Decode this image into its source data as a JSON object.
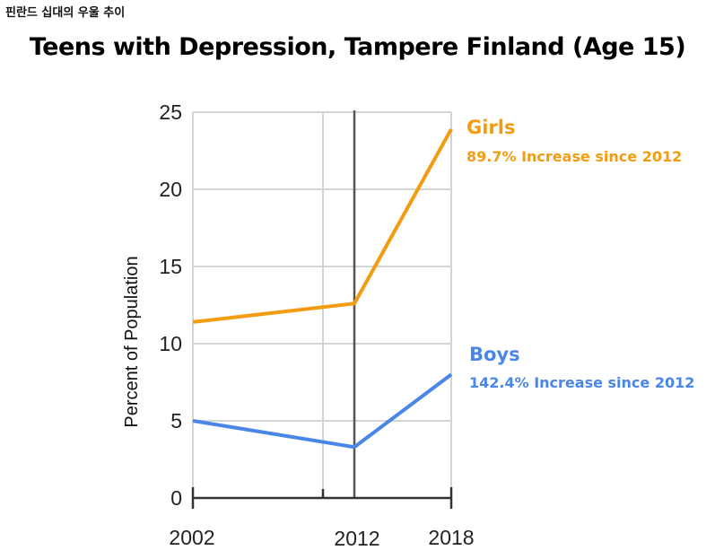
{
  "caption": "핀란드 십대의 우울 추이",
  "chart_data": {
    "type": "line",
    "title": "Teens with Depression, Tampere Finland (Age 15)",
    "xlabel": "",
    "ylabel": "Percent of Population",
    "x": [
      2002,
      2012,
      2018
    ],
    "x_tick_labels": [
      "2002",
      "2012",
      "2018"
    ],
    "xlim": [
      2002,
      2018
    ],
    "ylim": [
      0,
      25
    ],
    "y_ticks": [
      0,
      5,
      10,
      15,
      20,
      25
    ],
    "y_tick_labels": [
      "0",
      "5",
      "10",
      "15",
      "20",
      "25"
    ],
    "grid": true,
    "reference_line": {
      "x": 2012
    },
    "series": [
      {
        "name": "Girls",
        "values": [
          11.4,
          12.6,
          23.9
        ],
        "color": "#f39c12",
        "annotation": "89.7% Increase since 2012"
      },
      {
        "name": "Boys",
        "values": [
          5.0,
          3.3,
          8.0
        ],
        "color": "#4a86e8",
        "annotation": "142.4% Increase since 2012"
      }
    ]
  }
}
